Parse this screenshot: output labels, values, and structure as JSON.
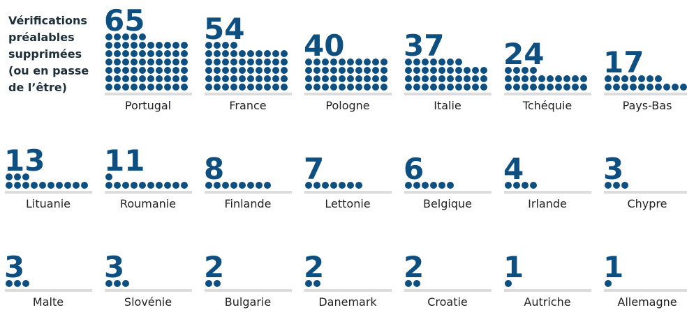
{
  "chart_data": {
    "type": "dot",
    "title": "Vérifications\npréalables\nsupprimées\n(ou en passe\nde l’être)",
    "categories": [
      "Portugal",
      "France",
      "Pologne",
      "Italie",
      "Tchéquie",
      "Pays-Bas",
      "Lituanie",
      "Roumanie",
      "Finlande",
      "Lettonie",
      "Belgique",
      "Irlande",
      "Chypre",
      "Malte",
      "Slovénie",
      "Bulgarie",
      "Danemark",
      "Croatie",
      "Autriche",
      "Allemagne"
    ],
    "values": [
      65,
      54,
      40,
      37,
      24,
      17,
      13,
      11,
      8,
      7,
      6,
      4,
      3,
      3,
      3,
      2,
      2,
      2,
      1,
      1
    ],
    "color": "#0d4f80"
  }
}
